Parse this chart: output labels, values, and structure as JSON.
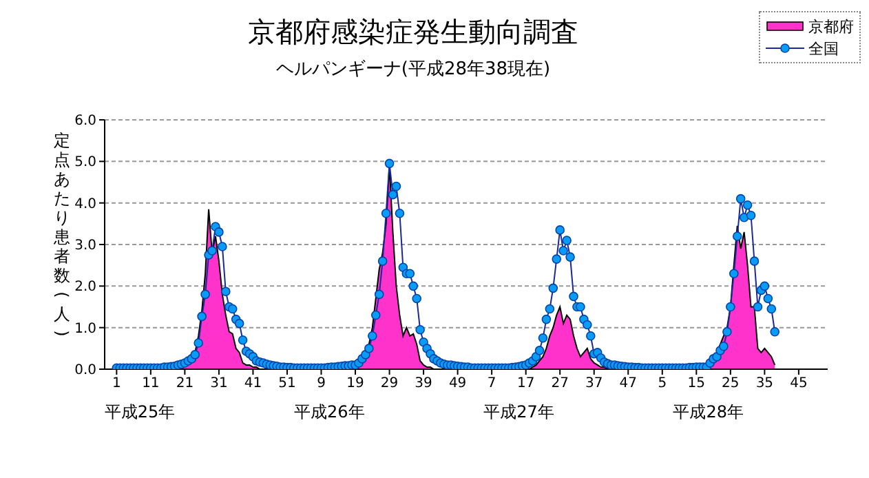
{
  "chart_data": {
    "type": "line",
    "title": "京都府感染症発生動向調査",
    "subtitle": "ヘルパンギーナ(平成28年38現在)",
    "ylabel": "定点あたり患者数(人)",
    "annotations": [
      "平成25年",
      "平成26年",
      "平成27年",
      "平成28年"
    ],
    "categories": [
      "1",
      null,
      null,
      null,
      null,
      null,
      null,
      null,
      null,
      null,
      "11",
      null,
      null,
      null,
      null,
      null,
      null,
      null,
      null,
      null,
      "21",
      null,
      null,
      null,
      null,
      null,
      null,
      null,
      null,
      null,
      "31",
      null,
      null,
      null,
      null,
      null,
      null,
      null,
      null,
      null,
      "41",
      null,
      null,
      null,
      null,
      null,
      null,
      null,
      null,
      null,
      "51",
      null,
      null,
      null,
      null,
      null,
      null,
      null,
      null,
      null,
      "9",
      null,
      null,
      null,
      null,
      null,
      null,
      null,
      null,
      null,
      "19",
      null,
      null,
      null,
      null,
      null,
      null,
      null,
      null,
      null,
      "29",
      null,
      null,
      null,
      null,
      null,
      null,
      null,
      null,
      null,
      "39",
      null,
      null,
      null,
      null,
      null,
      null,
      null,
      null,
      null,
      "49",
      null,
      null,
      null,
      null,
      null,
      null,
      null,
      null,
      null,
      "7",
      null,
      null,
      null,
      null,
      null,
      null,
      null,
      null,
      null,
      "17",
      null,
      null,
      null,
      null,
      null,
      null,
      null,
      null,
      null,
      "27",
      null,
      null,
      null,
      null,
      null,
      null,
      null,
      null,
      null,
      "37",
      null,
      null,
      null,
      null,
      null,
      null,
      null,
      null,
      null,
      "47",
      null,
      null,
      null,
      null,
      null,
      null,
      null,
      null,
      null,
      "5",
      null,
      null,
      null,
      null,
      null,
      null,
      null,
      null,
      null,
      "15",
      null,
      null,
      null,
      null,
      null,
      null,
      null,
      null,
      null,
      "25",
      null,
      null,
      null,
      null,
      null,
      null,
      null,
      null,
      null,
      "35",
      null,
      null,
      null,
      null,
      null,
      null,
      null,
      null,
      null,
      "45",
      null,
      null,
      null,
      null,
      null,
      null,
      null
    ],
    "series": [
      {
        "name": "京都府",
        "type": "area",
        "color": "#ff33cc",
        "values": [
          0,
          0,
          0,
          0,
          0,
          0,
          0,
          0,
          0,
          0,
          0,
          0,
          0,
          0,
          0,
          0,
          0,
          0,
          0,
          0.05,
          0.1,
          0.15,
          0.25,
          0.4,
          0.8,
          1.4,
          2.3,
          3.85,
          2.8,
          3.2,
          2.6,
          1.8,
          1.3,
          0.9,
          0.85,
          0.5,
          0.4,
          0.15,
          0.1,
          0.1,
          0.05,
          0.05,
          0,
          0,
          0,
          0,
          0,
          0,
          0,
          0,
          0,
          0,
          0,
          0,
          0,
          0,
          0,
          0,
          0,
          0,
          0,
          0,
          0,
          0,
          0,
          0,
          0,
          0,
          0,
          0.05,
          0.1,
          0.15,
          0.2,
          0.35,
          0.6,
          1.0,
          1.7,
          2.4,
          2.8,
          3.5,
          4.9,
          3.3,
          2.0,
          1.3,
          0.8,
          1.0,
          0.8,
          0.85,
          0.6,
          0.2,
          0.1,
          0.05,
          0.05,
          0,
          0,
          0,
          0,
          0,
          0,
          0,
          0,
          0,
          0,
          0,
          0,
          0,
          0,
          0,
          0,
          0,
          0,
          0,
          0,
          0,
          0,
          0,
          0,
          0,
          0,
          0,
          0,
          0,
          0.05,
          0.1,
          0.2,
          0.3,
          0.5,
          0.8,
          1.0,
          1.3,
          1.5,
          1.1,
          1.3,
          1.2,
          0.8,
          0.5,
          0.3,
          0.4,
          0.5,
          0.25,
          0.15,
          0.1,
          0.05,
          0.05,
          0,
          0,
          0,
          0,
          0,
          0,
          0,
          0,
          0,
          0,
          0,
          0,
          0,
          0,
          0,
          0,
          0,
          0,
          0,
          0,
          0,
          0,
          0,
          0,
          0,
          0,
          0,
          0,
          0,
          0.05,
          0.1,
          0.2,
          0.4,
          0.6,
          0.8,
          1.0,
          1.5,
          2.5,
          3.45,
          2.9,
          3.3,
          2.5,
          1.5,
          1.5,
          0.5,
          0.4,
          0.5,
          0.4,
          0.3,
          0.1,
          null,
          null,
          null,
          null,
          null,
          null,
          null,
          null,
          null,
          null,
          null,
          null,
          null,
          null
        ]
      },
      {
        "name": "全国",
        "marker": "circle",
        "color": "#0a9cf5",
        "values": [
          0.03,
          0.03,
          0.03,
          0.03,
          0.03,
          0.03,
          0.03,
          0.03,
          0.03,
          0.03,
          0.03,
          0.03,
          0.03,
          0.03,
          0.05,
          0.05,
          0.06,
          0.07,
          0.1,
          0.12,
          0.15,
          0.2,
          0.25,
          0.35,
          0.63,
          1.27,
          1.8,
          2.75,
          2.85,
          3.43,
          3.3,
          2.95,
          1.87,
          1.5,
          1.45,
          1.2,
          1.1,
          0.7,
          0.43,
          0.37,
          0.3,
          0.2,
          0.17,
          0.15,
          0.12,
          0.1,
          0.08,
          0.07,
          0.05,
          0.05,
          0.04,
          0.04,
          0.03,
          0.03,
          0.03,
          0.03,
          0.03,
          0.03,
          0.03,
          0.03,
          0.03,
          0.03,
          0.04,
          0.05,
          0.05,
          0.06,
          0.07,
          0.08,
          0.08,
          0.1,
          0.1,
          0.15,
          0.25,
          0.35,
          0.5,
          0.8,
          1.3,
          1.8,
          2.6,
          3.75,
          4.95,
          4.2,
          4.4,
          3.75,
          2.45,
          2.3,
          2.3,
          2.0,
          1.7,
          0.95,
          0.65,
          0.5,
          0.37,
          0.25,
          0.2,
          0.15,
          0.12,
          0.1,
          0.1,
          0.08,
          0.07,
          0.06,
          0.05,
          0.05,
          0.03,
          0.03,
          0.03,
          0.03,
          0.03,
          0.03,
          0.03,
          0.03,
          0.03,
          0.03,
          0.03,
          0.03,
          0.04,
          0.05,
          0.06,
          0.08,
          0.1,
          0.15,
          0.2,
          0.3,
          0.45,
          0.75,
          1.2,
          1.45,
          1.95,
          2.65,
          3.35,
          2.85,
          3.1,
          2.7,
          1.75,
          1.5,
          1.5,
          1.2,
          1.07,
          0.8,
          0.37,
          0.4,
          0.27,
          0.17,
          0.13,
          0.1,
          0.1,
          0.08,
          0.07,
          0.06,
          0.05,
          0.05,
          0.04,
          0.04,
          0.03,
          0.03,
          0.03,
          0.03,
          0.03,
          0.03,
          0.03,
          0.03,
          0.03,
          0.03,
          0.03,
          0.03,
          0.03,
          0.03,
          0.04,
          0.04,
          0.05,
          0.05,
          0.05,
          0.05,
          0.15,
          0.25,
          0.3,
          0.45,
          0.55,
          0.9,
          1.5,
          2.3,
          3.2,
          4.1,
          3.65,
          3.95,
          3.7,
          2.6,
          1.5,
          1.9,
          2.0,
          1.7,
          1.45,
          0.9,
          null,
          null,
          null,
          null,
          null,
          null,
          null,
          null,
          null,
          null,
          null,
          null,
          null,
          null
        ]
      }
    ],
    "ylim": [
      0,
      6
    ],
    "yticks": [
      {
        "value": 0,
        "label": "0.0"
      },
      {
        "value": 1,
        "label": "1.0"
      },
      {
        "value": 2,
        "label": "2.0"
      },
      {
        "value": 3,
        "label": "3.0"
      },
      {
        "value": 4,
        "label": "4.0"
      },
      {
        "value": 5,
        "label": "5.0"
      },
      {
        "value": 6,
        "label": "6.0"
      }
    ],
    "grid": "y",
    "legend": "top right",
    "line_style": "solid"
  }
}
